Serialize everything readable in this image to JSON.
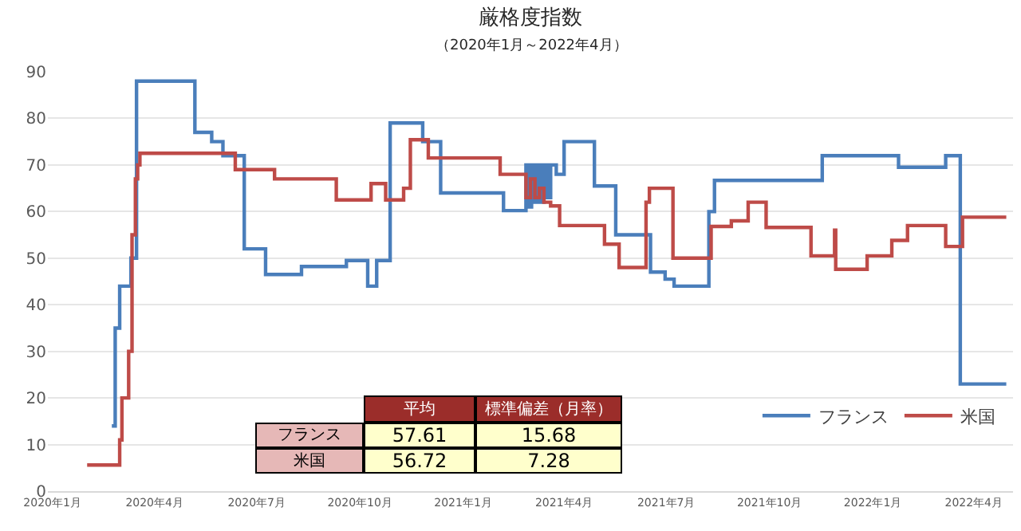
{
  "chart_data": {
    "type": "step",
    "title": "厳格度指数",
    "subtitle": "（2020年1月～2022年4月）",
    "series": [
      {
        "name": "フランス",
        "color": "#4a7ebb",
        "x": [
          "2020-02-23",
          "2020-02-26",
          "2020-03-01",
          "2020-03-11",
          "2020-03-16",
          "2020-05-07",
          "2020-05-22",
          "2020-06-01",
          "2020-06-20",
          "2020-07-09",
          "2020-08-10",
          "2020-09-19",
          "2020-10-08",
          "2020-10-16",
          "2020-10-28",
          "2020-11-26",
          "2020-12-12",
          "2021-02-06",
          "2021-02-26",
          "2021-03-01",
          "2021-03-03",
          "2021-03-05",
          "2021-03-08",
          "2021-03-11",
          "2021-03-14",
          "2021-03-17",
          "2021-03-20",
          "2021-03-25",
          "2021-04-01",
          "2021-04-28",
          "2021-05-17",
          "2021-06-17",
          "2021-06-30",
          "2021-07-08",
          "2021-08-08",
          "2021-08-13",
          "2021-11-17",
          "2022-01-24",
          "2022-03-07",
          "2022-03-20",
          "2022-04-30"
        ],
        "values": [
          14,
          35,
          44,
          50,
          88,
          77,
          75,
          72,
          52,
          46.5,
          48.2,
          49.5,
          44,
          49.5,
          79,
          75,
          64,
          60.2,
          70,
          61,
          70,
          62,
          70,
          62,
          70,
          63,
          70,
          68,
          75,
          65.5,
          55,
          47,
          45.5,
          44,
          60,
          66.7,
          72,
          69.5,
          72,
          23,
          23
        ]
      },
      {
        "name": "米国",
        "color": "#be4b48",
        "x": [
          "2020-02-01",
          "2020-03-01",
          "2020-03-03",
          "2020-03-09",
          "2020-03-12",
          "2020-03-15",
          "2020-03-17",
          "2020-03-19",
          "2020-06-12",
          "2020-07-17",
          "2020-09-10",
          "2020-10-11",
          "2020-10-24",
          "2020-11-09",
          "2020-11-15",
          "2020-12-01",
          "2021-02-03",
          "2021-02-26",
          "2021-03-02",
          "2021-03-06",
          "2021-03-10",
          "2021-03-14",
          "2021-03-20",
          "2021-03-28",
          "2021-05-07",
          "2021-05-20",
          "2021-06-13",
          "2021-06-16",
          "2021-07-07",
          "2021-08-10",
          "2021-08-28",
          "2021-09-12",
          "2021-09-28",
          "2021-11-07",
          "2021-11-28",
          "2021-11-29",
          "2021-12-27",
          "2022-01-18",
          "2022-02-01",
          "2022-03-07",
          "2022-03-22",
          "2022-04-30"
        ],
        "values": [
          5.6,
          11,
          20,
          30,
          55,
          67,
          70,
          72.5,
          69,
          67,
          62.5,
          66,
          62.5,
          65,
          75.4,
          71.5,
          68,
          63,
          67,
          63,
          65,
          62,
          61.2,
          57,
          53,
          48,
          62,
          65,
          50,
          56.8,
          58,
          62,
          56.6,
          50.5,
          56,
          47.6,
          50.5,
          53.8,
          57,
          52.5,
          58.8,
          58.8
        ]
      }
    ],
    "xlim": [
      "2019-12-28",
      "2022-05-06"
    ],
    "xticks": [
      {
        "value": "2020-01-01",
        "label": "2020年1月"
      },
      {
        "value": "2020-04-01",
        "label": "2020年4月"
      },
      {
        "value": "2020-07-01",
        "label": "2020年7月"
      },
      {
        "value": "2020-10-01",
        "label": "2020年10月"
      },
      {
        "value": "2021-01-01",
        "label": "2021年1月"
      },
      {
        "value": "2021-04-01",
        "label": "2021年4月"
      },
      {
        "value": "2021-07-01",
        "label": "2021年7月"
      },
      {
        "value": "2021-10-01",
        "label": "2021年10月"
      },
      {
        "value": "2022-01-01",
        "label": "2022年1月"
      },
      {
        "value": "2022-04-01",
        "label": "2022年4月"
      }
    ],
    "ylim": [
      0,
      90
    ],
    "yticks": [
      0,
      10,
      20,
      30,
      40,
      50,
      60,
      70,
      80,
      90
    ],
    "grid": "y",
    "legend": "bottom right",
    "annotations": [
      "平均",
      "標準偏差（月率）",
      "フランス",
      "57.61",
      "15.68",
      "米国",
      "56.72",
      "7.28"
    ]
  }
}
